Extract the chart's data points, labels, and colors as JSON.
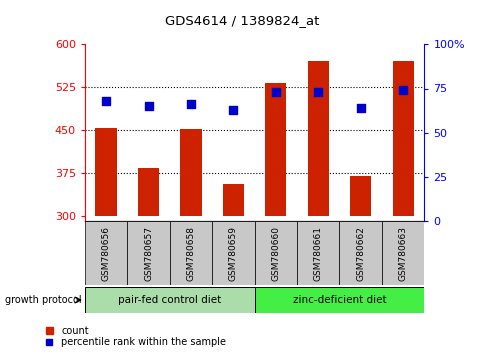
{
  "title": "GDS4614 / 1389824_at",
  "samples": [
    "GSM780656",
    "GSM780657",
    "GSM780658",
    "GSM780659",
    "GSM780660",
    "GSM780661",
    "GSM780662",
    "GSM780663"
  ],
  "counts": [
    453,
    383,
    452,
    355,
    533,
    570,
    370,
    570
  ],
  "percentiles": [
    68,
    65,
    66,
    63,
    73,
    73,
    64,
    74
  ],
  "ylim_left": [
    290,
    600
  ],
  "ylim_right": [
    0,
    100
  ],
  "yticks_left": [
    300,
    375,
    450,
    525,
    600
  ],
  "yticks_right": [
    0,
    25,
    50,
    75,
    100
  ],
  "hlines": [
    375,
    450,
    525
  ],
  "bar_color": "#cc2200",
  "dot_color": "#0000cc",
  "bar_bottom": 300,
  "group1_label": "pair-fed control diet",
  "group2_label": "zinc-deficient diet",
  "group1_color": "#aaddaa",
  "group2_color": "#44ee44",
  "group_protocol_label": "growth protocol",
  "legend_count": "count",
  "legend_pct": "percentile rank within the sample",
  "tick_label_bg": "#c8c8c8"
}
